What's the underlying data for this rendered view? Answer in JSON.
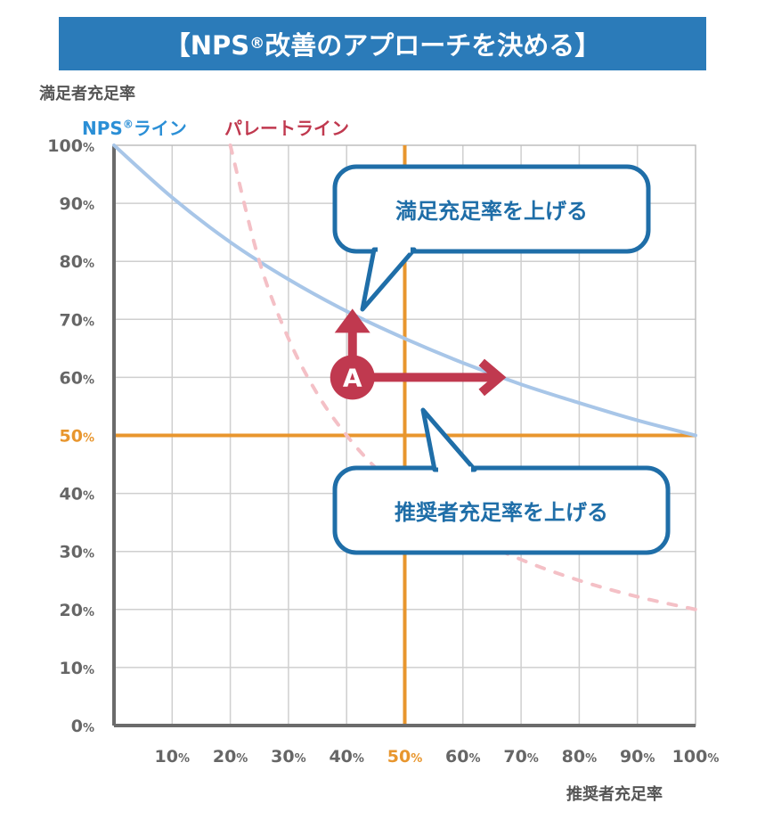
{
  "title": {
    "prefix": "【NPS",
    "reg": "®",
    "suffix": "改善のアプローチを決める】"
  },
  "chart_data": {
    "type": "line",
    "ylabel": "満足者充足率",
    "xlabel": "推奨者充足率",
    "xlim": [
      0,
      100
    ],
    "ylim": [
      0,
      100
    ],
    "grid": true,
    "x_ticks": [
      "10%",
      "20%",
      "30%",
      "40%",
      "50%",
      "60%",
      "70%",
      "80%",
      "90%",
      "100%"
    ],
    "y_ticks": [
      "0%",
      "10%",
      "20%",
      "30%",
      "40%",
      "50%",
      "60%",
      "70%",
      "80%",
      "90%",
      "100%"
    ],
    "highlight_tick_label": "50%",
    "reference_lines": {
      "x": 50,
      "y": 50,
      "color": "#e8962e"
    },
    "series": [
      {
        "name": "NPS®ライン",
        "color": "#a8c6e8",
        "style": "solid",
        "x": [
          0,
          10,
          20,
          30,
          40,
          50,
          60,
          70,
          80,
          90,
          100
        ],
        "y": [
          100,
          91,
          83.3,
          76.9,
          71.4,
          66.7,
          62.5,
          58.8,
          55.6,
          52.6,
          50
        ]
      },
      {
        "name": "パレートライン",
        "color": "#f4c0c6",
        "style": "dashed",
        "x": [
          20,
          25,
          30,
          35,
          40,
          45,
          50,
          60,
          70,
          80,
          90,
          100
        ],
        "y": [
          100,
          80,
          66.7,
          57.1,
          50,
          44.4,
          40,
          33.3,
          28.6,
          25,
          22.2,
          20
        ]
      }
    ],
    "point": {
      "label": "A",
      "x": 41,
      "y": 60,
      "color": "#c0394f"
    },
    "annotations": [
      {
        "text": "満足充足率を上げる",
        "target_series": "NPS®ライン",
        "direction": "up"
      },
      {
        "text": "推奨者充足率を上げる",
        "target_series": "NPS®ライン",
        "direction": "right"
      }
    ]
  },
  "legend": {
    "nps_label": "NPS",
    "nps_reg": "®",
    "nps_suffix": "ライン",
    "nps_color": "#2b8fd6",
    "pareto_label": "パレートライン",
    "pareto_color": "#c0394f"
  }
}
